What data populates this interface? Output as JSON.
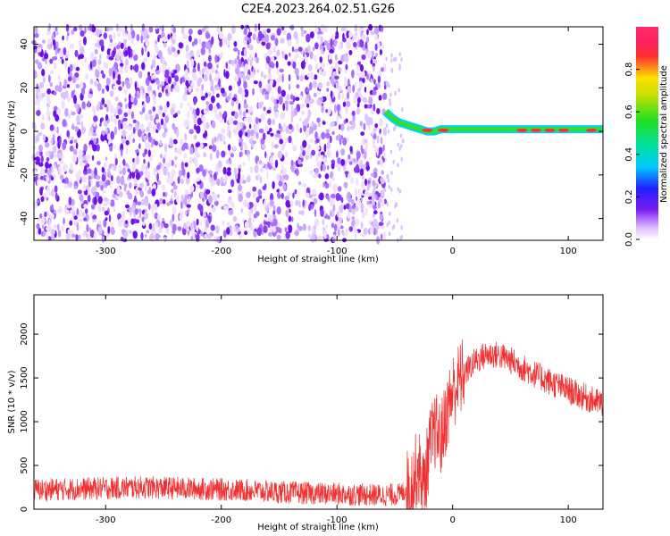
{
  "title": "C2E4.2023.264.02.51.G26",
  "colors": {
    "trace": "#f03030",
    "background": "#ffffff"
  },
  "chart_data": [
    {
      "type": "heatmap",
      "xlabel": "Height of straight line (km)",
      "ylabel": "Frequency (Hz)",
      "xlim": [
        -362,
        130
      ],
      "ylim": [
        -50,
        48
      ],
      "xticks": [
        "-300",
        "-200",
        "-100",
        "0",
        "100"
      ],
      "xtick_values": [
        -300,
        -200,
        -100,
        0,
        100
      ],
      "yticks": [
        "40",
        "20",
        "0",
        "-20",
        "-40"
      ],
      "ytick_values": [
        40,
        20,
        0,
        -20,
        -40
      ],
      "noise_region_x": [
        -362,
        -58
      ],
      "signal_line": {
        "x": [
          -58,
          -52,
          -46,
          -40,
          -34,
          -28,
          -22,
          -16,
          -10,
          -4,
          0,
          20,
          40,
          60,
          80,
          100,
          130
        ],
        "y": [
          9,
          6,
          4,
          3,
          2,
          1,
          0,
          0,
          1,
          1,
          1,
          1,
          1,
          1,
          1,
          1,
          1
        ]
      },
      "colorbar": {
        "label": "Normalized spectral amplitude",
        "range": [
          0,
          1
        ],
        "ticks": [
          "0.0",
          "0.2",
          "0.4",
          "0.6",
          "0.8"
        ],
        "tick_values": [
          0.0,
          0.2,
          0.4,
          0.6,
          0.8
        ]
      }
    },
    {
      "type": "line",
      "xlabel": "Height of straight line (km)",
      "ylabel": "SNR (10 * v/v)",
      "xlim": [
        -362,
        130
      ],
      "ylim": [
        0,
        2450
      ],
      "xticks": [
        "-300",
        "-200",
        "-100",
        "0",
        "100"
      ],
      "xtick_values": [
        -300,
        -200,
        -100,
        0,
        100
      ],
      "yticks": [
        "0",
        "500",
        "1000",
        "1500",
        "2000"
      ],
      "ytick_values": [
        0,
        500,
        1000,
        1500,
        2000
      ],
      "series": [
        {
          "x": [
            -362,
            -330,
            -300,
            -270,
            -240,
            -210,
            -180,
            -150,
            -120,
            -90,
            -60,
            -45,
            -35,
            -30,
            -25,
            -20,
            -15,
            -10,
            -5,
            0,
            10,
            20,
            30,
            40,
            50,
            60,
            70,
            80,
            90,
            100,
            110,
            120,
            130
          ],
          "y": [
            220,
            230,
            240,
            250,
            240,
            230,
            215,
            195,
            180,
            170,
            160,
            170,
            300,
            500,
            250,
            700,
            900,
            800,
            1100,
            1350,
            1550,
            1700,
            1770,
            1760,
            1700,
            1620,
            1550,
            1480,
            1420,
            1360,
            1300,
            1250,
            1200
          ]
        }
      ]
    }
  ]
}
